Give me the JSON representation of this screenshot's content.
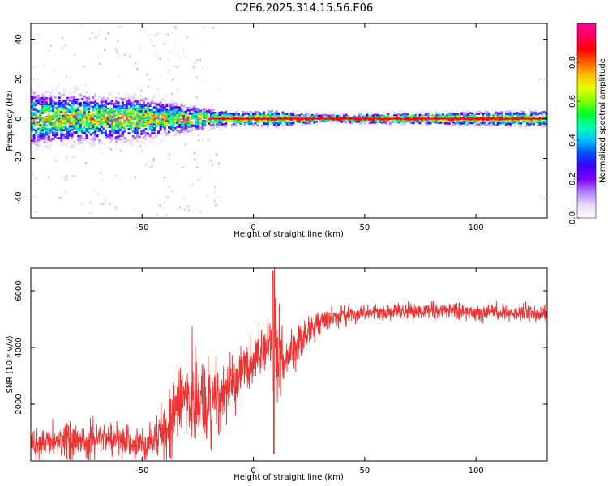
{
  "figure": {
    "title": "C2E6.2025.314.15.56.E06"
  },
  "chart_data": [
    {
      "type": "heatmap",
      "name": "spectrogram",
      "xlabel": "Height of straight line (km)",
      "ylabel": "Frequency (Hz)",
      "xlim": [
        -100,
        132
      ],
      "ylim": [
        -50,
        48
      ],
      "x_ticks": [
        -50,
        0,
        50,
        100
      ],
      "y_ticks": [
        -40,
        -20,
        0,
        20,
        40
      ],
      "x_tick_labels": [
        "-50",
        "0",
        "50",
        "100"
      ],
      "y_tick_labels": [
        "-40",
        "-20",
        "0",
        "20",
        "40"
      ],
      "ridge": {
        "description": "energy concentrated near 0 Hz; broad noisy spread below ~-20 km, narrow and strong above",
        "center_freq_hz": 0,
        "spread_hz_by_height": [
          {
            "x": -100,
            "spread": 10
          },
          {
            "x": -50,
            "spread": 8
          },
          {
            "x": -30,
            "spread": 5
          },
          {
            "x": -10,
            "spread": 2.5
          },
          {
            "x": 10,
            "spread": 3
          },
          {
            "x": 30,
            "spread": 1.5
          },
          {
            "x": 132,
            "spread": 3
          }
        ]
      },
      "colorbar": {
        "label": "Normalized spectral amplitude",
        "min": 0.0,
        "max": 1.0,
        "ticks": [
          0.0,
          0.2,
          0.4,
          0.6,
          0.8
        ],
        "tick_labels": [
          "0.0",
          "0.2",
          "0.4",
          "0.6",
          "0.8"
        ],
        "colormap": [
          "#ffffff",
          "#e8d8ff",
          "#b080ff",
          "#7b00ff",
          "#3a00ff",
          "#0050ff",
          "#00c0ff",
          "#00ffb0",
          "#00ff30",
          "#80ff00",
          "#e6ff00",
          "#ffc000",
          "#ff6000",
          "#ff0000",
          "#ff0060",
          "#ff0090"
        ]
      }
    },
    {
      "type": "line",
      "name": "snr",
      "xlabel": "Height of straight line (km)",
      "ylabel": "SNR (10 * v/v)",
      "xlim": [
        -100,
        132
      ],
      "ylim": [
        0,
        6800
      ],
      "x_ticks": [
        -50,
        0,
        50,
        100
      ],
      "y_ticks": [
        2000,
        4000,
        6000
      ],
      "x_tick_labels": [
        "-50",
        "0",
        "50",
        "100"
      ],
      "y_tick_labels": [
        "2000",
        "4000",
        "6000"
      ],
      "color": "#ee3333",
      "series": [
        {
          "name": "SNR",
          "x": [
            -100,
            -90,
            -80,
            -70,
            -60,
            -50,
            -45,
            -40,
            -35,
            -30,
            -25,
            -20,
            -15,
            -10,
            -5,
            0,
            5,
            8,
            9,
            10,
            15,
            20,
            25,
            30,
            35,
            40,
            50,
            60,
            70,
            80,
            90,
            100,
            110,
            120,
            132
          ],
          "values": [
            550,
            700,
            750,
            800,
            720,
            550,
            700,
            1200,
            2000,
            2100,
            2000,
            1900,
            2200,
            2500,
            3200,
            3600,
            3900,
            4000,
            4400,
            3600,
            3700,
            4200,
            4600,
            4900,
            5050,
            5150,
            5200,
            5250,
            5300,
            5280,
            5300,
            5250,
            5250,
            5250,
            5200
          ],
          "noise": [
            250,
            300,
            350,
            350,
            300,
            300,
            400,
            700,
            900,
            900,
            850,
            900,
            700,
            600,
            500,
            450,
            400,
            500,
            2200,
            1500,
            400,
            350,
            300,
            220,
            180,
            160,
            140,
            140,
            150,
            150,
            150,
            150,
            160,
            170,
            180
          ]
        }
      ]
    }
  ]
}
